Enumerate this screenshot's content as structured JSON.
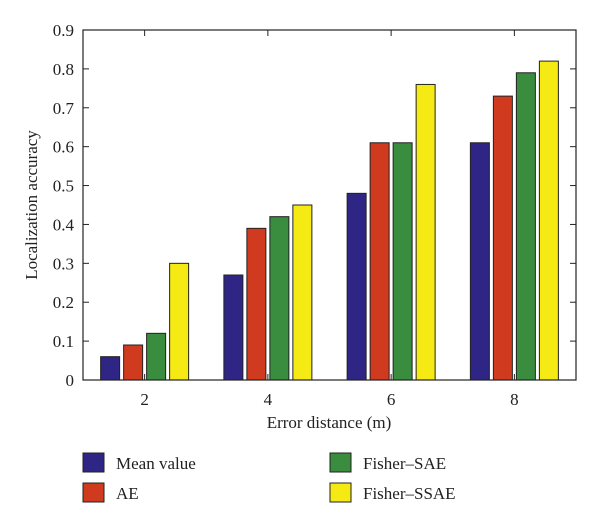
{
  "chart_data": {
    "type": "bar",
    "title": "",
    "xlabel": "Error distance (m)",
    "ylabel": "Localization accuracy",
    "categories": [
      "2",
      "4",
      "6",
      "8"
    ],
    "ylim": [
      0,
      0.9
    ],
    "yticks": [
      "0",
      "0.1",
      "0.2",
      "0.3",
      "0.4",
      "0.5",
      "0.6",
      "0.7",
      "0.8",
      "0.9"
    ],
    "grid": false,
    "legend_position": "bottom",
    "series": [
      {
        "name": "Mean value",
        "color": "#2e2585",
        "values": [
          0.06,
          0.27,
          0.48,
          0.61
        ]
      },
      {
        "name": "AE",
        "color": "#d03a1e",
        "values": [
          0.09,
          0.39,
          0.61,
          0.73
        ]
      },
      {
        "name": "Fisher–SAE",
        "color": "#3a8c3f",
        "values": [
          0.12,
          0.42,
          0.61,
          0.79
        ]
      },
      {
        "name": "Fisher–SSAE",
        "color": "#f5ea14",
        "values": [
          0.3,
          0.45,
          0.76,
          0.82
        ]
      }
    ]
  }
}
